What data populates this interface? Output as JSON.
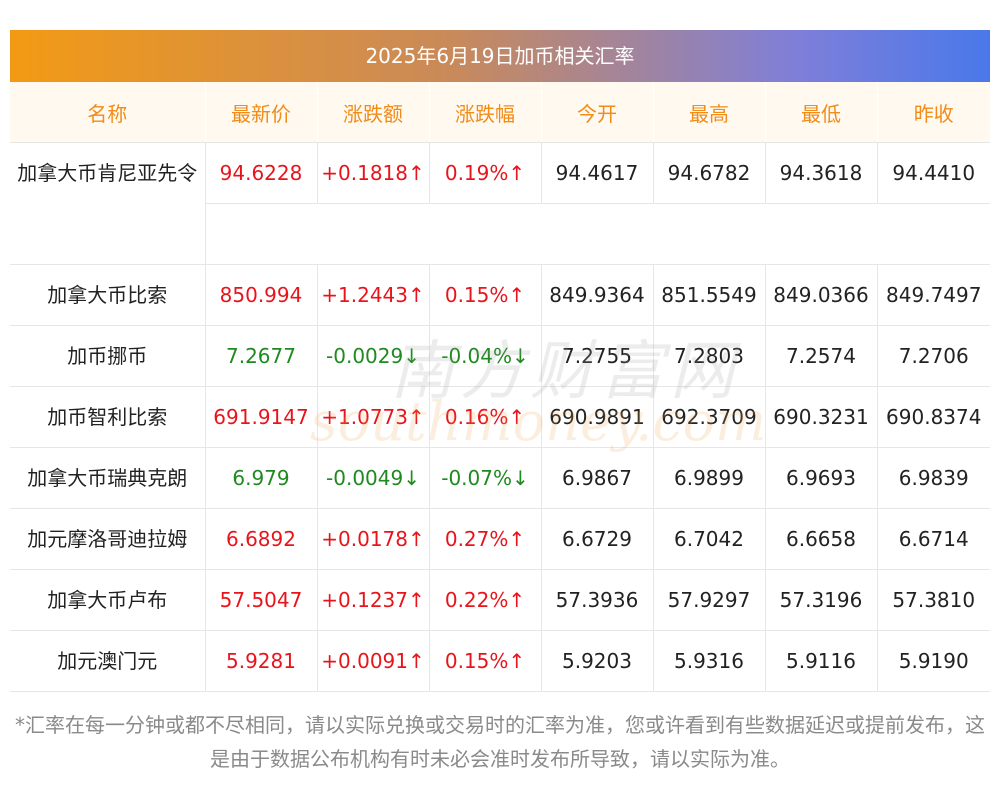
{
  "title": "2025年6月19日加币相关汇率",
  "headers": [
    "名称",
    "最新价",
    "涨跌额",
    "涨跌幅",
    "今开",
    "最高",
    "最低",
    "昨收"
  ],
  "rows": [
    {
      "name": "加拿大币肯尼亚先令",
      "latest": "94.6228",
      "change": "+0.1818↑",
      "pct": "0.19%↑",
      "open": "94.4617",
      "high": "94.6782",
      "low": "94.3618",
      "prev": "94.4410",
      "dir": "up"
    },
    {
      "name": "加拿大币比索",
      "latest": "850.994",
      "change": "+1.2443↑",
      "pct": "0.15%↑",
      "open": "849.9364",
      "high": "851.5549",
      "low": "849.0366",
      "prev": "849.7497",
      "dir": "up"
    },
    {
      "name": "加币挪币",
      "latest": "7.2677",
      "change": "-0.0029↓",
      "pct": "-0.04%↓",
      "open": "7.2755",
      "high": "7.2803",
      "low": "7.2574",
      "prev": "7.2706",
      "dir": "down"
    },
    {
      "name": "加币智利比索",
      "latest": "691.9147",
      "change": "+1.0773↑",
      "pct": "0.16%↑",
      "open": "690.9891",
      "high": "692.3709",
      "low": "690.3231",
      "prev": "690.8374",
      "dir": "up"
    },
    {
      "name": "加拿大币瑞典克朗",
      "latest": "6.979",
      "change": "-0.0049↓",
      "pct": "-0.07%↓",
      "open": "6.9867",
      "high": "6.9899",
      "low": "6.9693",
      "prev": "6.9839",
      "dir": "down"
    },
    {
      "name": "加元摩洛哥迪拉姆",
      "latest": "6.6892",
      "change": "+0.0178↑",
      "pct": "0.27%↑",
      "open": "6.6729",
      "high": "6.7042",
      "low": "6.6658",
      "prev": "6.6714",
      "dir": "up"
    },
    {
      "name": "加拿大币卢布",
      "latest": "57.5047",
      "change": "+0.1237↑",
      "pct": "0.22%↑",
      "open": "57.3936",
      "high": "57.9297",
      "low": "57.3196",
      "prev": "57.3810",
      "dir": "up"
    },
    {
      "name": "加元澳门元",
      "latest": "5.9281",
      "change": "+0.0091↑",
      "pct": "0.15%↑",
      "open": "5.9203",
      "high": "5.9316",
      "low": "5.9116",
      "prev": "5.9190",
      "dir": "up"
    }
  ],
  "watermark": {
    "cn": "南方财富网",
    "en": "southmoney.com"
  },
  "note": "*汇率在每一分钟或都不尽相同，请以实际兑换或交易时的汇率为准，您或许看到有些数据延迟或提前发布，这是由于数据公布机构有时未必会准时发布所导致，请以实际为准。",
  "colors": {
    "up": "#e8141c",
    "down": "#1f8a1f",
    "header": "#f08c1a"
  }
}
